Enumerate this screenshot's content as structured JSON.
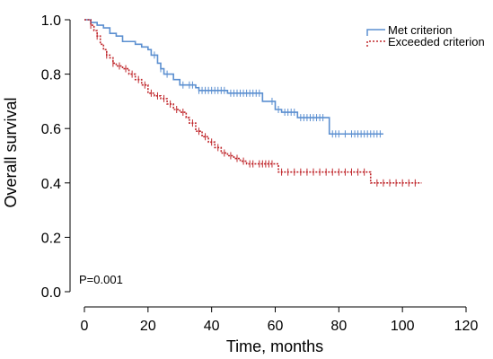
{
  "chart_data": {
    "type": "line",
    "subtype": "kaplan-meier",
    "title": "",
    "xlabel": "Time, months",
    "ylabel": "Overall survival",
    "xlim": [
      0,
      120
    ],
    "ylim": [
      0,
      1.0
    ],
    "xticks": [
      "0",
      "20",
      "40",
      "60",
      "80",
      "100",
      "120"
    ],
    "yticks": [
      "0.0",
      "0.2",
      "0.4",
      "0.6",
      "0.8",
      "1.0"
    ],
    "grid": false,
    "legend_position": "top-right",
    "annotation": "P=0.001",
    "series": [
      {
        "name": "Met criterion",
        "color": "#5b8fd0",
        "dash": "solid",
        "steps": [
          [
            0,
            1.0
          ],
          [
            2,
            0.99
          ],
          [
            4,
            0.98
          ],
          [
            6,
            0.97
          ],
          [
            8,
            0.95
          ],
          [
            10,
            0.94
          ],
          [
            12,
            0.92
          ],
          [
            16,
            0.91
          ],
          [
            18,
            0.9
          ],
          [
            20,
            0.89
          ],
          [
            21,
            0.87
          ],
          [
            23,
            0.84
          ],
          [
            24,
            0.82
          ],
          [
            25,
            0.8
          ],
          [
            28,
            0.78
          ],
          [
            30,
            0.76
          ],
          [
            35,
            0.75
          ],
          [
            36,
            0.74
          ],
          [
            45,
            0.73
          ],
          [
            56,
            0.7
          ],
          [
            60,
            0.67
          ],
          [
            62,
            0.66
          ],
          [
            67,
            0.64
          ],
          [
            77,
            0.58
          ],
          [
            94,
            0.58
          ]
        ],
        "censor_times": [
          22,
          24,
          26,
          31,
          33,
          34,
          36,
          37,
          38,
          39,
          40,
          41,
          42,
          43,
          44,
          46,
          47,
          48,
          49,
          50,
          51,
          52,
          53,
          54,
          55,
          59,
          61,
          63,
          64,
          65,
          66,
          68,
          69,
          70,
          71,
          72,
          73,
          74,
          75,
          78,
          79,
          80,
          82,
          84,
          85,
          86,
          87,
          88,
          89,
          90,
          91,
          92,
          93
        ]
      },
      {
        "name": "Exceeded criterion",
        "color": "#c0282d",
        "dash": "dotted",
        "steps": [
          [
            0,
            1.0
          ],
          [
            2,
            0.98
          ],
          [
            3,
            0.96
          ],
          [
            4,
            0.94
          ],
          [
            5,
            0.91
          ],
          [
            6,
            0.89
          ],
          [
            7,
            0.87
          ],
          [
            8,
            0.86
          ],
          [
            9,
            0.84
          ],
          [
            10,
            0.83
          ],
          [
            12,
            0.82
          ],
          [
            14,
            0.8
          ],
          [
            16,
            0.78
          ],
          [
            18,
            0.76
          ],
          [
            20,
            0.73
          ],
          [
            22,
            0.72
          ],
          [
            24,
            0.71
          ],
          [
            26,
            0.69
          ],
          [
            28,
            0.67
          ],
          [
            30,
            0.66
          ],
          [
            32,
            0.64
          ],
          [
            33,
            0.62
          ],
          [
            35,
            0.59
          ],
          [
            37,
            0.57
          ],
          [
            39,
            0.55
          ],
          [
            41,
            0.53
          ],
          [
            43,
            0.51
          ],
          [
            45,
            0.5
          ],
          [
            47,
            0.49
          ],
          [
            49,
            0.48
          ],
          [
            51,
            0.47
          ],
          [
            61,
            0.44
          ],
          [
            90,
            0.4
          ],
          [
            106,
            0.4
          ]
        ],
        "censor_times": [
          2,
          4,
          7,
          9,
          11,
          13,
          15,
          17,
          19,
          21,
          23,
          25,
          27,
          29,
          31,
          34,
          36,
          38,
          40,
          42,
          44,
          46,
          48,
          50,
          52,
          53,
          55,
          56,
          57,
          58,
          59,
          62,
          64,
          66,
          68,
          70,
          72,
          74,
          76,
          78,
          80,
          82,
          84,
          86,
          88,
          92,
          94,
          96,
          98,
          100,
          102,
          104
        ]
      }
    ]
  }
}
